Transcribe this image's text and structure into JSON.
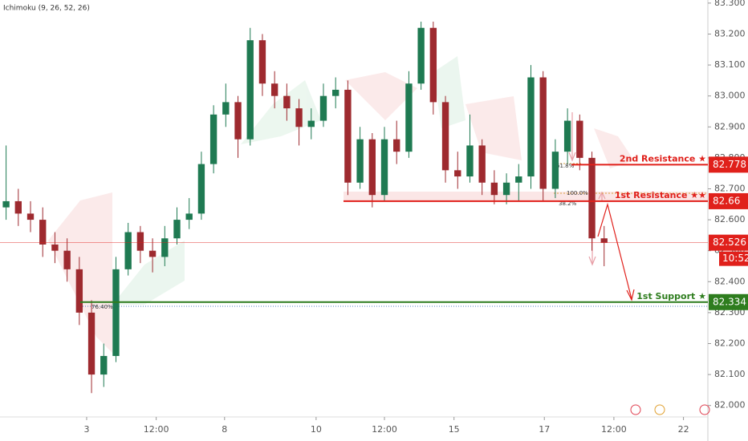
{
  "chart_data": {
    "type": "candlestick",
    "indicator": "Ichimoku (9, 26, 52, 26)",
    "up_color": "#1f7a52",
    "down_color": "#9e2a2f",
    "x": [
      0,
      1,
      2,
      3,
      4,
      5,
      6,
      7,
      8,
      9,
      10,
      11,
      12,
      13,
      14,
      15,
      16,
      17,
      18,
      19,
      20,
      21,
      22,
      23,
      24,
      25,
      26,
      27,
      28,
      29,
      30,
      31,
      32,
      33,
      34,
      35,
      36,
      37,
      38,
      39,
      40,
      41,
      42,
      43,
      44,
      45,
      46,
      47,
      48,
      49
    ],
    "open": [
      82.64,
      82.66,
      82.62,
      82.6,
      82.52,
      82.5,
      82.44,
      82.3,
      82.1,
      82.16,
      82.44,
      82.56,
      82.5,
      82.48,
      82.54,
      82.6,
      82.62,
      82.78,
      82.94,
      82.98,
      82.86,
      83.18,
      83.04,
      83.0,
      82.96,
      82.9,
      82.92,
      83.0,
      83.02,
      82.72,
      82.86,
      82.68,
      82.86,
      82.82,
      83.04,
      83.22,
      82.98,
      82.76,
      82.74,
      82.84,
      82.72,
      82.68,
      82.72,
      82.74,
      83.06,
      82.7,
      82.82,
      82.92,
      82.8,
      82.54
    ],
    "high": [
      82.84,
      82.7,
      82.66,
      82.64,
      82.56,
      82.54,
      82.48,
      82.34,
      82.2,
      82.48,
      82.59,
      82.58,
      82.54,
      82.58,
      82.64,
      82.67,
      82.82,
      82.97,
      83.04,
      83.0,
      83.22,
      83.2,
      83.08,
      83.04,
      82.99,
      82.96,
      83.04,
      83.06,
      83.05,
      82.9,
      82.88,
      82.9,
      82.92,
      83.08,
      83.24,
      83.24,
      83.0,
      82.82,
      82.94,
      82.86,
      82.76,
      82.75,
      82.78,
      83.1,
      83.08,
      82.86,
      82.96,
      82.94,
      82.82,
      82.58
    ],
    "low": [
      82.6,
      82.58,
      82.56,
      82.48,
      82.46,
      82.4,
      82.26,
      82.04,
      82.06,
      82.14,
      82.42,
      82.46,
      82.43,
      82.45,
      82.52,
      82.57,
      82.6,
      82.75,
      82.9,
      82.8,
      82.84,
      83.0,
      82.96,
      82.92,
      82.84,
      82.86,
      82.9,
      82.96,
      82.68,
      82.7,
      82.64,
      82.66,
      82.78,
      82.8,
      83.02,
      82.94,
      82.72,
      82.7,
      82.72,
      82.68,
      82.65,
      82.65,
      82.66,
      82.7,
      82.66,
      82.67,
      82.78,
      82.76,
      82.5,
      82.45
    ],
    "close": [
      82.66,
      82.62,
      82.6,
      82.52,
      82.5,
      82.44,
      82.3,
      82.1,
      82.16,
      82.44,
      82.56,
      82.5,
      82.48,
      82.54,
      82.6,
      82.62,
      82.78,
      82.94,
      82.98,
      82.86,
      83.18,
      83.04,
      83.0,
      82.96,
      82.9,
      82.92,
      83.0,
      83.02,
      82.72,
      82.86,
      82.68,
      82.86,
      82.82,
      83.04,
      83.22,
      82.98,
      82.76,
      82.74,
      82.84,
      82.72,
      82.68,
      82.72,
      82.74,
      83.06,
      82.7,
      82.82,
      82.92,
      82.8,
      82.54,
      82.526
    ],
    "xlim": [
      -0.5,
      57.5
    ],
    "xticks": [
      {
        "value": 6.6,
        "label": "3"
      },
      {
        "value": 12.3,
        "label": "12:00"
      },
      {
        "value": 17.9,
        "label": "8"
      },
      {
        "value": 25.4,
        "label": "10"
      },
      {
        "value": 31.0,
        "label": "12:00"
      },
      {
        "value": 36.7,
        "label": "15"
      },
      {
        "value": 44.1,
        "label": "17"
      },
      {
        "value": 49.8,
        "label": "12:00"
      },
      {
        "value": 55.5,
        "label": "22"
      }
    ],
    "ylim": [
      81.963,
      83.31
    ],
    "yticks": [
      {
        "value": 82.0,
        "label": "82.000"
      },
      {
        "value": 82.1,
        "label": "82.100"
      },
      {
        "value": 82.2,
        "label": "82.200"
      },
      {
        "value": 82.3,
        "label": "82.300"
      },
      {
        "value": 82.4,
        "label": "82.400"
      },
      {
        "value": 82.5,
        "label": "82.500"
      },
      {
        "value": 82.6,
        "label": "82.600"
      },
      {
        "value": 82.7,
        "label": "82.700"
      },
      {
        "value": 82.8,
        "label": "82.800"
      },
      {
        "value": 82.9,
        "label": "82.900"
      },
      {
        "value": 83.0,
        "label": "83.000"
      },
      {
        "value": 83.1,
        "label": "83.100"
      },
      {
        "value": 83.2,
        "label": "83.200"
      },
      {
        "value": 83.3,
        "label": "83.300"
      }
    ],
    "levels": [
      {
        "name": "2nd Resistance ★",
        "value": 82.778,
        "color": "#e0201b"
      },
      {
        "name": "1st Resistance ★★",
        "value": 82.66,
        "color": "#e0201b"
      },
      {
        "name": "1st Support ★",
        "value": 82.334,
        "color": "#2e7d1e"
      }
    ],
    "current_price": 82.526,
    "current_color": "#e0201b",
    "time_label": "10:52",
    "fib_labels": [
      "61.8%",
      "100.0%",
      "38.2%",
      "76.40%"
    ]
  }
}
